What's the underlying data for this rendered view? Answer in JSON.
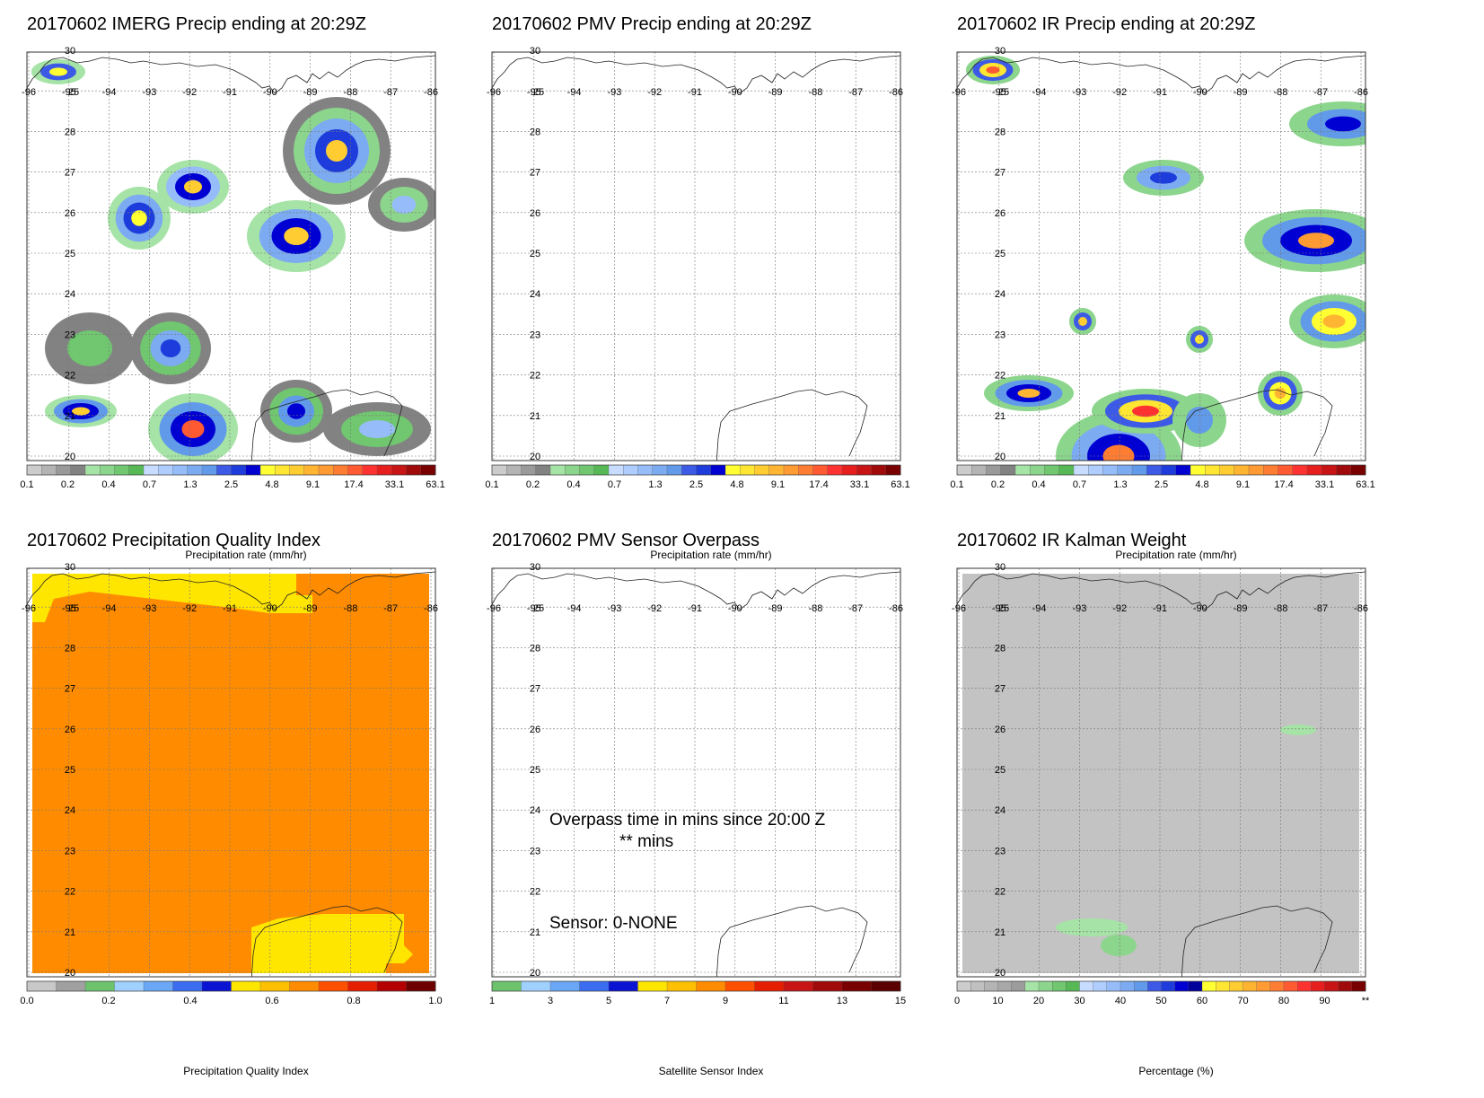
{
  "palette": {
    "precip": [
      "#cccccc",
      "#b4b4b4",
      "#9a9a9a",
      "#828282",
      "#a6e3a6",
      "#8cd58c",
      "#70c770",
      "#56b956",
      "#c8dcff",
      "#afcdff",
      "#96bdfa",
      "#7cabf2",
      "#629aea",
      "#3c5ae6",
      "#1e3cdc",
      "#0000d2",
      "#ffff32",
      "#ffe632",
      "#ffcd32",
      "#ffb432",
      "#ff9b32",
      "#ff7d32",
      "#ff5a32",
      "#ff3232",
      "#e61e1e",
      "#c81414",
      "#a00a0a",
      "#780000"
    ],
    "qi": [
      "#c8c8c8",
      "#a0a0a0",
      "#6cc36c",
      "#9fd0ff",
      "#6aa7f5",
      "#3b6df0",
      "#0a14d2",
      "#ffe600",
      "#ffc000",
      "#ff8c00",
      "#ff5000",
      "#e61e00",
      "#b40000",
      "#6e0000"
    ],
    "sensor": [
      "#6cc36c",
      "#9fd0ff",
      "#6aa7f5",
      "#3b6df0",
      "#0a14d2",
      "#ffe600",
      "#ffc000",
      "#ff8c00",
      "#ff5000",
      "#e61e00",
      "#c81414",
      "#a00a0a",
      "#780000",
      "#5a0000"
    ],
    "percent": [
      "#cccccc",
      "#c0c0c0",
      "#b4b4b4",
      "#a8a8a8",
      "#9c9c9c",
      "#a6e3a6",
      "#8cd58c",
      "#70c770",
      "#56b956",
      "#c8dcff",
      "#afcdff",
      "#96bdfa",
      "#7cabf2",
      "#629aea",
      "#3c5ae6",
      "#1e3cdc",
      "#0000d2",
      "#00009a",
      "#ffff32",
      "#ffe632",
      "#ffcd32",
      "#ffb432",
      "#ff9b32",
      "#ff7d32",
      "#ff5a32",
      "#ff3232",
      "#e61e1e",
      "#c81414",
      "#a00a0a",
      "#780000"
    ],
    "qi_low": "#ffe600",
    "qi_high": "#ff8c00",
    "kalman_bg": "#c3c3c3"
  },
  "map": {
    "lon_labels": [
      "-96",
      "-95",
      "-94",
      "-93",
      "-92",
      "-91",
      "-90",
      "-89",
      "-88",
      "-87",
      "-86"
    ],
    "lat_labels": [
      "30",
      "28",
      "27",
      "26",
      "25",
      "24",
      "23",
      "22",
      "21",
      "20"
    ],
    "lat_extra": "25"
  },
  "panels": [
    {
      "title": "20170602 IMERG Precip ending at 20:29Z",
      "cbar_label": "Precipitation rate (mm/hr)",
      "cbar_ticks": [
        "0.1",
        "0.2",
        "0.4",
        "0.7",
        "1.3",
        "2.5",
        "4.8",
        "9.1",
        "17.4",
        "33.1",
        "63.1"
      ],
      "cbar_type": "precip",
      "field": "imerg"
    },
    {
      "title": "20170602 PMV Precip ending at 20:29Z",
      "cbar_label": "Precipitation rate (mm/hr)",
      "cbar_ticks": [
        "0.1",
        "0.2",
        "0.4",
        "0.7",
        "1.3",
        "2.5",
        "4.8",
        "9.1",
        "17.4",
        "33.1",
        "63.1"
      ],
      "cbar_type": "precip",
      "field": "none"
    },
    {
      "title": "20170602 IR Precip ending at 20:29Z",
      "cbar_label": "Precipitation rate (mm/hr)",
      "cbar_ticks": [
        "0.1",
        "0.2",
        "0.4",
        "0.7",
        "1.3",
        "2.5",
        "4.8",
        "9.1",
        "17.4",
        "33.1",
        "63.1"
      ],
      "cbar_type": "precip",
      "field": "ir"
    },
    {
      "title": "20170602 Precipitation Quality Index",
      "cbar_label": "Precipitation Quality Index",
      "cbar_ticks": [
        "0.0",
        "0.2",
        "0.4",
        "0.6",
        "0.8",
        "1.0"
      ],
      "cbar_type": "qi",
      "field": "qi"
    },
    {
      "title": "20170602 PMV Sensor Overpass",
      "cbar_label": "Satellite Sensor Index",
      "cbar_ticks": [
        "1",
        "3",
        "5",
        "7",
        "9",
        "11",
        "13",
        "15"
      ],
      "cbar_type": "sensor",
      "field": "none"
    },
    {
      "title": "20170602 IR Kalman Weight",
      "cbar_label": "Percentage (%)",
      "cbar_ticks": [
        "0",
        "10",
        "20",
        "30",
        "40",
        "50",
        "60",
        "70",
        "80",
        "90",
        "**"
      ],
      "cbar_type": "percent",
      "field": "kalman"
    }
  ],
  "overpass": {
    "line1": "Overpass time in mins since 20:00 Z",
    "line2": "** mins",
    "sensor": "Sensor:   0-NONE"
  }
}
